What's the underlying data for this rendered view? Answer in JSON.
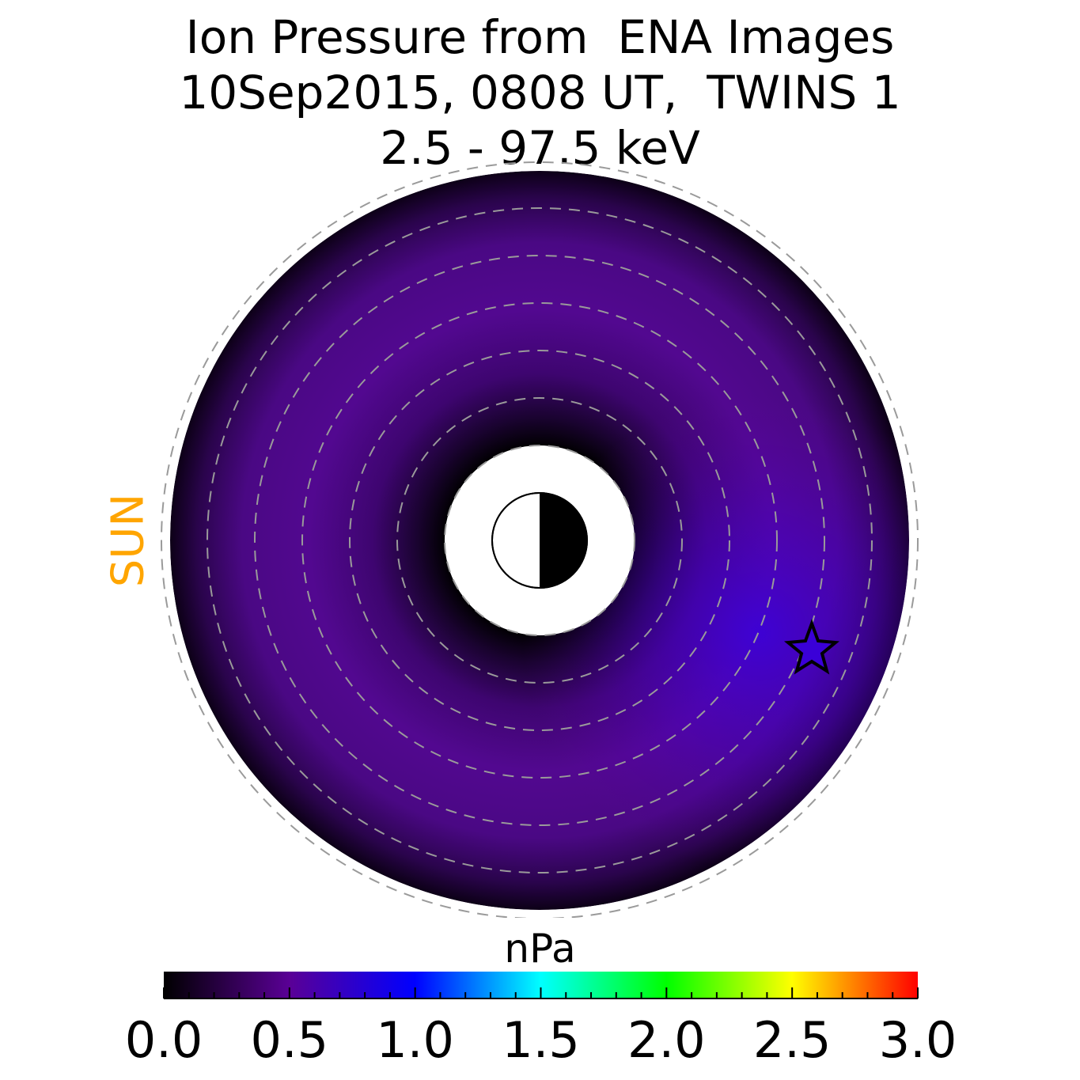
{
  "title_lines": [
    "Ion Pressure from  ENA Images",
    "10Sep2015, 0808 UT,  TWINS 1",
    "2.5 - 97.5 keV"
  ],
  "sun_label": "SUN",
  "sun_color": "#ffa500",
  "colorbar": {
    "unit": "nPa",
    "min": 0.0,
    "max": 3.0,
    "ticks": [
      "0.0",
      "0.5",
      "1.0",
      "1.5",
      "2.0",
      "2.5",
      "3.0"
    ],
    "colors": [
      "#000000",
      "#5a0096",
      "#0000ff",
      "#00ffff",
      "#00ff00",
      "#ffff00",
      "#ff0000"
    ]
  },
  "chart_data": {
    "type": "heatmap",
    "title": "Ion Pressure from  ENA Images 10Sep2015, 0808 UT,  TWINS 1 2.5 - 97.5 keV",
    "grid": true,
    "value_range": [
      0.0,
      3.0
    ],
    "peak_value": 0.55,
    "peak_location": "dusk / post-midnight side",
    "spacecraft_marker": "star",
    "earth_marker": "half-dark circle (night side on right)"
  }
}
